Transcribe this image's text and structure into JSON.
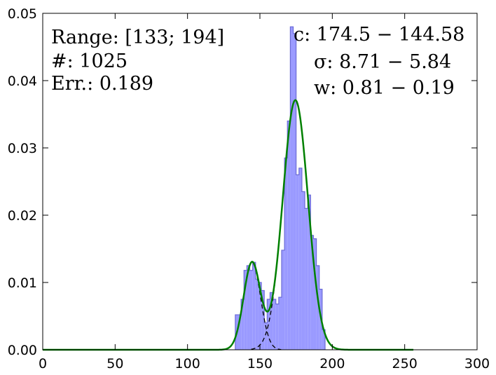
{
  "chart_data": {
    "type": "histogram",
    "xlim": [
      0,
      300
    ],
    "ylim": [
      0,
      0.05
    ],
    "x_ticks": [
      "0",
      "50",
      "100",
      "150",
      "200",
      "250",
      "300"
    ],
    "y_ticks": [
      "0.00",
      "0.01",
      "0.02",
      "0.03",
      "0.04",
      "0.05"
    ],
    "grid": false,
    "histogram": {
      "bin_width": 2,
      "bins": [
        [
          133,
          0.0052
        ],
        [
          135,
          0.0052
        ],
        [
          137,
          0.0075
        ],
        [
          139,
          0.0118
        ],
        [
          141,
          0.0125
        ],
        [
          143,
          0.0118
        ],
        [
          145,
          0.013
        ],
        [
          147,
          0.0105
        ],
        [
          149,
          0.01
        ],
        [
          151,
          0.0088
        ],
        [
          153,
          0.004
        ],
        [
          155,
          0.0075
        ],
        [
          157,
          0.0085
        ],
        [
          159,
          0.0075
        ],
        [
          161,
          0.0068
        ],
        [
          163,
          0.0078
        ],
        [
          165,
          0.0148
        ],
        [
          167,
          0.0285
        ],
        [
          169,
          0.034
        ],
        [
          171,
          0.048
        ],
        [
          173,
          0.047
        ],
        [
          175,
          0.026
        ],
        [
          177,
          0.027
        ],
        [
          179,
          0.0235
        ],
        [
          181,
          0.021
        ],
        [
          183,
          0.023
        ],
        [
          185,
          0.017
        ],
        [
          187,
          0.0165
        ],
        [
          189,
          0.0125
        ],
        [
          191,
          0.009
        ],
        [
          193,
          0.003
        ]
      ],
      "fill_color": "#9a9aff",
      "edge_color": "#6b6bd6"
    },
    "fit": {
      "total_color": "#008000",
      "components_color": "#000000",
      "components": [
        {
          "c": 174.5,
          "sigma": 8.71,
          "w": 0.81
        },
        {
          "c": 144.58,
          "sigma": 5.84,
          "w": 0.19
        }
      ],
      "x_range": [
        0,
        256
      ]
    },
    "annotations": {
      "left": [
        "Range: [133; 194]",
        "#: 1025",
        "Err.: 0.189"
      ],
      "right": [
        "c: 174.5 − 144.58",
        "σ: 8.71 − 5.84",
        "w: 0.81 − 0.19"
      ]
    }
  }
}
